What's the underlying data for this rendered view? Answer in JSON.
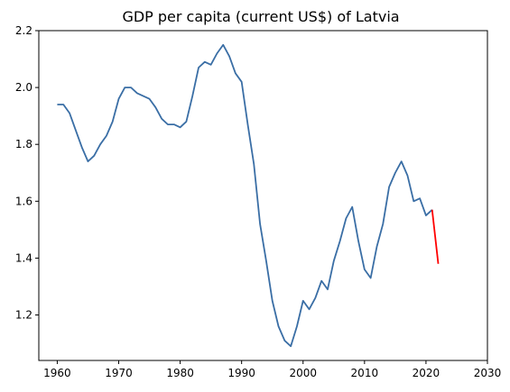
{
  "chart_data": {
    "type": "line",
    "title": "GDP per capita (current US$) of Latvia",
    "xlabel": "",
    "ylabel": "",
    "xlim": [
      1957,
      2030
    ],
    "ylim": [
      1.04,
      2.2
    ],
    "xticks": [
      1960,
      1970,
      1980,
      1990,
      2000,
      2010,
      2020,
      2030
    ],
    "yticks": [
      1.2,
      1.4,
      1.6,
      1.8,
      2.0,
      2.2
    ],
    "grid": false,
    "series": [
      {
        "color": "#3a6ea5",
        "x": [
          1960,
          1961,
          1962,
          1963,
          1964,
          1965,
          1966,
          1967,
          1968,
          1969,
          1970,
          1971,
          1972,
          1973,
          1974,
          1975,
          1976,
          1977,
          1978,
          1979,
          1980,
          1981,
          1982,
          1983,
          1984,
          1985,
          1986,
          1987,
          1988,
          1989,
          1990,
          1991,
          1992,
          1993,
          1994,
          1995,
          1996,
          1997,
          1998,
          1999,
          2000,
          2001,
          2002,
          2003,
          2004,
          2005,
          2006,
          2007,
          2008,
          2009,
          2010,
          2011,
          2012,
          2013,
          2014,
          2015,
          2016,
          2017,
          2018,
          2019,
          2020,
          2021
        ],
        "y": [
          1.94,
          1.94,
          1.91,
          1.85,
          1.79,
          1.74,
          1.76,
          1.8,
          1.83,
          1.88,
          1.96,
          2.0,
          2.0,
          1.98,
          1.97,
          1.96,
          1.93,
          1.89,
          1.87,
          1.87,
          1.86,
          1.88,
          1.97,
          2.07,
          2.09,
          2.08,
          2.12,
          2.15,
          2.11,
          2.05,
          2.02,
          1.87,
          1.73,
          1.52,
          1.39,
          1.25,
          1.16,
          1.11,
          1.09,
          1.16,
          1.25,
          1.22,
          1.26,
          1.32,
          1.29,
          1.39,
          1.46,
          1.54,
          1.58,
          1.46,
          1.36,
          1.33,
          1.44,
          1.52,
          1.65,
          1.7,
          1.74,
          1.69,
          1.6,
          1.61,
          1.55,
          1.57
        ]
      },
      {
        "color": "#ff0000",
        "x": [
          2021,
          2022
        ],
        "y": [
          1.57,
          1.38
        ]
      }
    ]
  }
}
